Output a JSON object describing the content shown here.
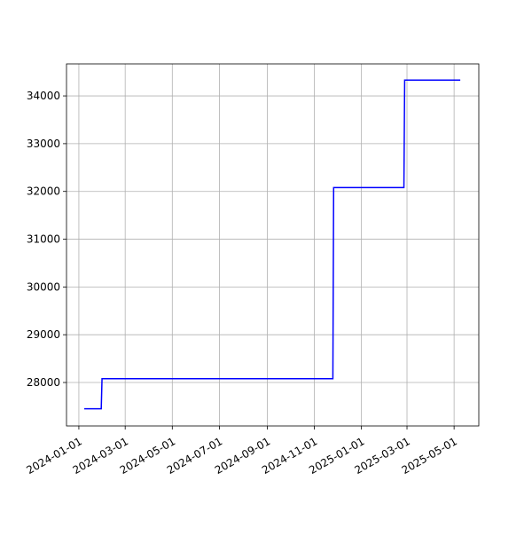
{
  "chart_data": {
    "type": "line",
    "x": [
      "2024-01-08",
      "2024-01-30",
      "2024-01-31",
      "2024-11-25",
      "2024-11-26",
      "2025-02-25",
      "2025-02-26",
      "2025-05-09"
    ],
    "series": [
      {
        "color": "#0000ff",
        "values": [
          27450,
          27450,
          28080,
          28080,
          32080,
          32080,
          34330,
          34330
        ]
      }
    ],
    "xlim": [
      "2023-12-16",
      "2025-06-02"
    ],
    "xticks": [
      "2024-01-01",
      "2024-03-01",
      "2024-05-01",
      "2024-07-01",
      "2024-09-01",
      "2024-11-01",
      "2025-01-01",
      "2025-03-01",
      "2025-05-01"
    ],
    "ylim": [
      27090,
      34670
    ],
    "yticks": [
      28000,
      29000,
      30000,
      31000,
      32000,
      33000,
      34000
    ],
    "grid": true
  }
}
